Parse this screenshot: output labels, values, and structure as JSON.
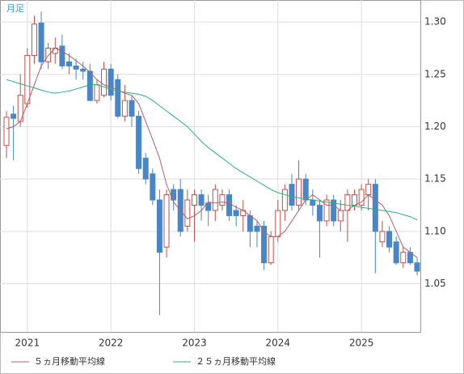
{
  "chart_data": {
    "type": "candlestick",
    "title": "月足",
    "categories": [
      null,
      null,
      null,
      "2021",
      null,
      null,
      null,
      null,
      null,
      null,
      null,
      null,
      null,
      null,
      null,
      "2022",
      null,
      null,
      null,
      null,
      null,
      null,
      null,
      null,
      null,
      null,
      null,
      "2023",
      null,
      null,
      null,
      null,
      null,
      null,
      null,
      null,
      null,
      null,
      null,
      "2024",
      null,
      null,
      null,
      null,
      null,
      null,
      null,
      null,
      null,
      null,
      null,
      "2025",
      null,
      null,
      null,
      null,
      null,
      null,
      null,
      null
    ],
    "open": [
      1.182,
      1.212,
      1.205,
      1.222,
      1.268,
      1.299,
      1.262,
      1.27,
      1.277,
      1.262,
      1.258,
      1.255,
      1.253,
      1.225,
      1.23,
      1.255,
      1.245,
      1.21,
      1.225,
      1.21,
      1.17,
      1.155,
      1.13,
      1.085,
      1.14,
      1.14,
      1.105,
      1.125,
      1.135,
      1.127,
      1.12,
      1.125,
      1.135,
      1.12,
      1.115,
      1.115,
      1.105,
      1.105,
      1.07,
      1.095,
      1.12,
      1.145,
      1.125,
      1.15,
      1.13,
      1.125,
      1.11,
      1.13,
      1.11,
      1.12,
      1.125,
      1.125,
      1.135,
      1.145,
      1.09,
      1.1,
      1.09,
      1.07,
      1.08,
      1.07
    ],
    "high": [
      1.215,
      1.22,
      1.25,
      1.275,
      1.306,
      1.31,
      1.28,
      1.285,
      1.288,
      1.27,
      1.265,
      1.262,
      1.26,
      1.245,
      1.262,
      1.26,
      1.25,
      1.24,
      1.23,
      1.215,
      1.175,
      1.16,
      1.14,
      1.14,
      1.145,
      1.15,
      1.14,
      1.14,
      1.14,
      1.135,
      1.145,
      1.14,
      1.14,
      1.125,
      1.13,
      1.12,
      1.11,
      1.11,
      1.1,
      1.13,
      1.145,
      1.155,
      1.168,
      1.155,
      1.14,
      1.13,
      1.135,
      1.135,
      1.13,
      1.14,
      1.14,
      1.145,
      1.15,
      1.15,
      1.11,
      1.105,
      1.095,
      1.085,
      1.085,
      1.075
    ],
    "low": [
      1.17,
      1.168,
      1.2,
      1.218,
      1.26,
      1.255,
      1.255,
      1.26,
      1.255,
      1.25,
      1.245,
      1.245,
      1.225,
      1.222,
      1.228,
      1.225,
      1.208,
      1.205,
      1.2,
      1.155,
      1.145,
      1.125,
      1.02,
      1.075,
      1.12,
      1.095,
      1.1,
      1.09,
      1.11,
      1.105,
      1.11,
      1.12,
      1.11,
      1.105,
      1.1,
      1.085,
      1.085,
      1.063,
      1.068,
      1.09,
      1.11,
      1.12,
      1.12,
      1.125,
      1.115,
      1.075,
      1.105,
      1.105,
      1.1,
      1.09,
      1.12,
      1.12,
      1.12,
      1.06,
      1.085,
      1.08,
      1.068,
      1.065,
      1.068,
      1.058
    ],
    "close": [
      1.209,
      1.208,
      1.23,
      1.268,
      1.298,
      1.262,
      1.275,
      1.275,
      1.258,
      1.258,
      1.255,
      1.253,
      1.225,
      1.24,
      1.255,
      1.23,
      1.21,
      1.225,
      1.21,
      1.16,
      1.15,
      1.13,
      1.08,
      1.135,
      1.13,
      1.1,
      1.13,
      1.135,
      1.125,
      1.12,
      1.14,
      1.135,
      1.115,
      1.115,
      1.12,
      1.1,
      1.1,
      1.07,
      1.095,
      1.12,
      1.14,
      1.125,
      1.15,
      1.13,
      1.125,
      1.11,
      1.13,
      1.11,
      1.12,
      1.135,
      1.135,
      1.14,
      1.145,
      1.1,
      1.1,
      1.085,
      1.07,
      1.08,
      1.07,
      1.062
    ],
    "up_color": "#c0504d",
    "down_color": "#4a86c5",
    "lines": [
      {
        "name": "５ヵ月移動平均線",
        "color": "#b0606e",
        "values": [
          1.198,
          1.2,
          1.205,
          1.222,
          1.24,
          1.258,
          1.268,
          1.275,
          1.272,
          1.268,
          1.263,
          1.258,
          1.252,
          1.245,
          1.24,
          1.238,
          1.235,
          1.232,
          1.23,
          1.222,
          1.205,
          1.188,
          1.17,
          1.145,
          1.128,
          1.12,
          1.112,
          1.115,
          1.12,
          1.128,
          1.127,
          1.128,
          1.127,
          1.123,
          1.12,
          1.115,
          1.11,
          1.1,
          1.095,
          1.095,
          1.1,
          1.11,
          1.12,
          1.13,
          1.135,
          1.13,
          1.125,
          1.125,
          1.12,
          1.12,
          1.125,
          1.128,
          1.135,
          1.13,
          1.125,
          1.115,
          1.1,
          1.085,
          1.08,
          1.075
        ]
      },
      {
        "name": "２５ヵ月移動平均線",
        "color": "#2fae7e",
        "values": [
          1.245,
          1.243,
          1.241,
          1.239,
          1.237,
          1.235,
          1.233,
          1.232,
          1.233,
          1.234,
          1.236,
          1.238,
          1.24,
          1.24,
          1.238,
          1.236,
          1.234,
          1.233,
          1.232,
          1.231,
          1.229,
          1.225,
          1.22,
          1.215,
          1.21,
          1.205,
          1.2,
          1.193,
          1.186,
          1.18,
          1.175,
          1.17,
          1.165,
          1.16,
          1.156,
          1.152,
          1.148,
          1.144,
          1.14,
          1.137,
          1.135,
          1.133,
          1.132,
          1.131,
          1.13,
          1.129,
          1.128,
          1.127,
          1.126,
          1.125,
          1.124,
          1.123,
          1.122,
          1.121,
          1.12,
          1.119,
          1.118,
          1.116,
          1.114,
          1.111
        ]
      }
    ],
    "ylim": [
      1.004,
      1.321
    ],
    "yticks": [
      1.05,
      {
        "value": 1.1,
        "label": "1.10"
      },
      1.15,
      {
        "value": 1.2,
        "label": "1.20"
      },
      1.25,
      {
        "value": 1.3,
        "label": "1.30"
      }
    ],
    "grid": true
  }
}
